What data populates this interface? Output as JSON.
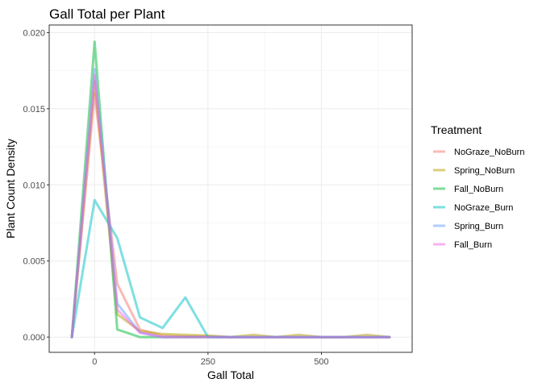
{
  "chart_data": {
    "type": "line",
    "title": "Gall Total per Plant",
    "xlabel": "Gall Total",
    "ylabel": "Plant Count Density",
    "xlim": [
      -100,
      700
    ],
    "ylim": [
      -0.001,
      0.0205
    ],
    "x_ticks": [
      0,
      250,
      500
    ],
    "x_tick_labels": [
      "0",
      "250",
      "500"
    ],
    "y_ticks": [
      0.0,
      0.005,
      0.01,
      0.015,
      0.02
    ],
    "y_tick_labels": [
      "0.000",
      "0.005",
      "0.010",
      "0.015",
      "0.020"
    ],
    "grid": true,
    "legend": {
      "title": "Treatment",
      "position": "right"
    },
    "series": [
      {
        "name": "NoGraze_NoBurn",
        "color": "#F8766D",
        "x": [
          -50,
          0,
          50,
          100,
          150,
          200,
          250,
          300,
          350,
          400,
          450,
          500,
          550,
          600,
          650
        ],
        "y": [
          0,
          0.016,
          0.0035,
          0.0005,
          0.0001,
          5e-05,
          5e-05,
          0,
          0,
          0,
          0,
          0,
          0,
          0,
          0
        ]
      },
      {
        "name": "Spring_NoBurn",
        "color": "#B79F00",
        "x": [
          -50,
          0,
          50,
          100,
          150,
          200,
          250,
          300,
          350,
          400,
          450,
          500,
          550,
          600,
          650
        ],
        "y": [
          0,
          0.0168,
          0.0015,
          0.0004,
          0.0002,
          0.00015,
          0.0001,
          0,
          0.00015,
          0,
          0.00015,
          0,
          0,
          0.00015,
          0
        ]
      },
      {
        "name": "Fall_NoBurn",
        "color": "#00BA38",
        "x": [
          -50,
          0,
          50,
          100,
          150,
          200,
          250,
          300,
          350,
          400,
          450,
          500,
          550,
          600,
          650
        ],
        "y": [
          0,
          0.0194,
          0.0005,
          0,
          0,
          0,
          0,
          0,
          0,
          0,
          0,
          0,
          0,
          0,
          0
        ]
      },
      {
        "name": "NoGraze_Burn",
        "color": "#00BFC4",
        "x": [
          -50,
          0,
          50,
          100,
          150,
          200,
          250,
          300,
          350,
          400,
          450,
          500,
          550,
          600,
          650
        ],
        "y": [
          0,
          0.009,
          0.0065,
          0.0013,
          0.0006,
          0.0026,
          0,
          0,
          0,
          0,
          0,
          0,
          0,
          0,
          0
        ]
      },
      {
        "name": "Spring_Burn",
        "color": "#619CFF",
        "x": [
          -50,
          0,
          50,
          100,
          150,
          200,
          250,
          300,
          350,
          400,
          450,
          500,
          550,
          600,
          650
        ],
        "y": [
          0,
          0.0176,
          0.0022,
          0.0003,
          0,
          0,
          0,
          0,
          0,
          0,
          0,
          0,
          0,
          0,
          0
        ]
      },
      {
        "name": "Fall_Burn",
        "color": "#F564E3",
        "x": [
          -50,
          0,
          50,
          100,
          150,
          200,
          250,
          300,
          350,
          400,
          450,
          500,
          550,
          600,
          650
        ],
        "y": [
          0,
          0.0172,
          0.0018,
          0.0003,
          0,
          0,
          0,
          0,
          0,
          0,
          0,
          0,
          0,
          0,
          0
        ]
      }
    ]
  }
}
